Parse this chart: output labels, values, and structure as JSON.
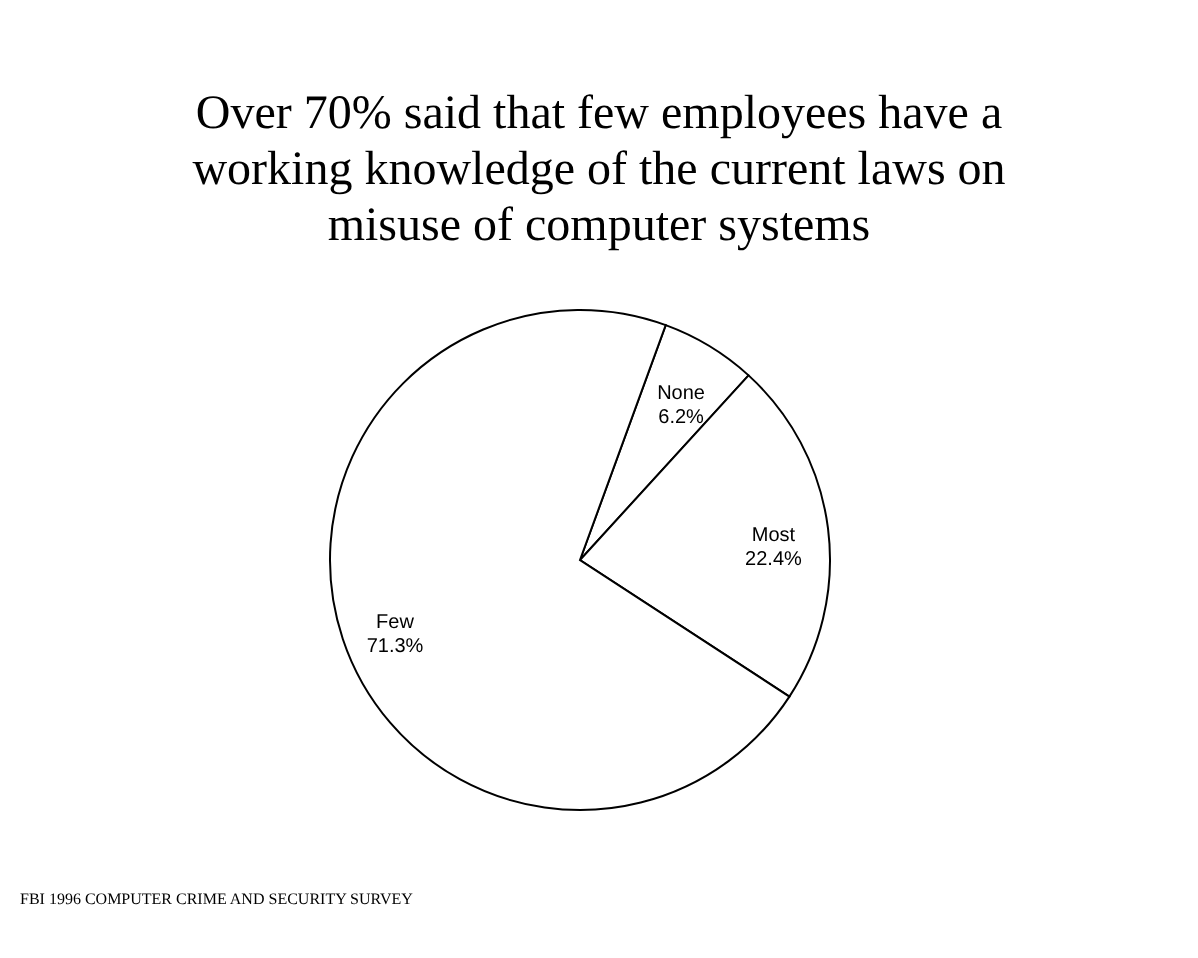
{
  "chart_data": {
    "type": "pie",
    "title": "Over 70% said that few employees have a working knowledge of the current laws on misuse of computer systems",
    "categories": [
      "None",
      "Most",
      "Few"
    ],
    "values": [
      6.2,
      22.4,
      71.3
    ],
    "value_labels": [
      "6.2%",
      "22.4%",
      "71.3%"
    ],
    "colors": [
      "#ffffff",
      "#ffffff",
      "#ffffff"
    ],
    "legend": false,
    "annotations": [
      "FBI 1996 COMPUTER CRIME AND SECURITY SURVEY"
    ]
  }
}
